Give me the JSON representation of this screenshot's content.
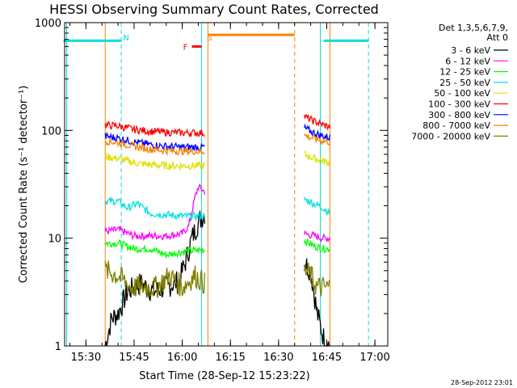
{
  "chart_data": {
    "type": "line",
    "title": "HESSI Observing Summary Count Rates, Corrected",
    "xlabel": "Start Time (28-Sep-12 15:23:22)",
    "ylabel": "Corrected Count Rate (s⁻¹ detector⁻¹)",
    "y_scale": "log",
    "ylim": [
      1,
      1000
    ],
    "xlim": [
      "15:23:22",
      "17:04:00"
    ],
    "x_ticks": [
      "15:30",
      "15:45",
      "16:00",
      "16:15",
      "16:30",
      "16:45",
      "17:00"
    ],
    "y_ticks": [
      "1",
      "10",
      "100",
      "1000"
    ],
    "timestamp": "28-Sep-2012 23:01",
    "legend_header": [
      "Det 1,3,5,6,7,9,",
      "Att 0"
    ],
    "legend_position": "top-right",
    "annotations": [
      {
        "label": "N",
        "color": "#00e0e0",
        "x": "15:41"
      },
      {
        "label": "S",
        "color": "#ff8000",
        "x": "16:07"
      },
      {
        "label": "F",
        "color": "#ff0000",
        "x": "16:03"
      }
    ],
    "markers": [
      {
        "name": "night",
        "color": "#00e0e0",
        "style": "solid",
        "x": "15:24"
      },
      {
        "name": "night",
        "color": "#00e0e0",
        "style": "dashed",
        "x": "15:41"
      },
      {
        "name": "night",
        "color": "#00e0e0",
        "style": "solid",
        "x": "16:06"
      },
      {
        "name": "night",
        "color": "#00e0e0",
        "style": "solid",
        "x": "16:43"
      },
      {
        "name": "night",
        "color": "#00e0e0",
        "style": "dashed",
        "x": "16:58"
      },
      {
        "name": "saa",
        "color": "#ff8000",
        "style": "solid",
        "x": "15:36"
      },
      {
        "name": "saa",
        "color": "#ff8000",
        "style": "solid",
        "x": "16:08"
      },
      {
        "name": "saa",
        "color": "#ff8000",
        "style": "dashed",
        "x": "16:35"
      },
      {
        "name": "saa",
        "color": "#ff8000",
        "style": "solid",
        "x": "16:46"
      }
    ],
    "bars": [
      {
        "name": "night",
        "color": "#00e0e0",
        "y": 680,
        "ranges": [
          [
            "15:23",
            "15:41"
          ],
          [
            "16:44",
            "16:58"
          ]
        ]
      },
      {
        "name": "saa",
        "color": "#ff8000",
        "y": 770,
        "ranges": [
          [
            "16:08",
            "16:35"
          ]
        ]
      },
      {
        "name": "flare",
        "color": "#ff0000",
        "y": 600,
        "ranges": [
          [
            "16:03",
            "16:06"
          ]
        ]
      }
    ],
    "series": [
      {
        "name": "3 - 6 keV",
        "color": "#000000",
        "segments": [
          [
            [
              "15:36",
              1.0
            ],
            [
              "15:38",
              1.8
            ],
            [
              "15:40",
              2.0
            ],
            [
              "15:43",
              3.2
            ],
            [
              "15:47",
              3.8
            ],
            [
              "15:51",
              3.2
            ],
            [
              "15:55",
              3.5
            ],
            [
              "15:59",
              4.0
            ],
            [
              "16:01",
              6.0
            ],
            [
              "16:03",
              10.0
            ],
            [
              "16:05",
              14.0
            ],
            [
              "16:07",
              17.0
            ]
          ],
          [
            [
              "16:38",
              6.0
            ],
            [
              "16:40",
              5.0
            ],
            [
              "16:42",
              2.0
            ],
            [
              "16:44",
              1.2
            ],
            [
              "16:46",
              1.0
            ]
          ]
        ]
      },
      {
        "name": "6 - 12 keV",
        "color": "#ff00ff",
        "segments": [
          [
            [
              "15:36",
              11.5
            ],
            [
              "15:40",
              12.0
            ],
            [
              "15:45",
              10.5
            ],
            [
              "15:50",
              10.5
            ],
            [
              "15:55",
              10.5
            ],
            [
              "16:00",
              11.0
            ],
            [
              "16:02",
              13.0
            ],
            [
              "16:04",
              24.0
            ],
            [
              "16:05",
              30.0
            ],
            [
              "16:07",
              27.0
            ]
          ],
          [
            [
              "16:38",
              11.0
            ],
            [
              "16:41",
              10.5
            ],
            [
              "16:44",
              10.0
            ],
            [
              "16:46",
              10.0
            ]
          ]
        ]
      },
      {
        "name": "12 - 25 keV",
        "color": "#00ff00",
        "segments": [
          [
            [
              "15:36",
              9.0
            ],
            [
              "15:40",
              9.0
            ],
            [
              "15:45",
              8.0
            ],
            [
              "15:50",
              8.0
            ],
            [
              "15:55",
              7.0
            ],
            [
              "16:00",
              7.5
            ],
            [
              "16:07",
              7.8
            ]
          ],
          [
            [
              "16:38",
              9.5
            ],
            [
              "16:41",
              8.5
            ],
            [
              "16:44",
              8.0
            ],
            [
              "16:46",
              8.0
            ]
          ]
        ]
      },
      {
        "name": "25 - 50 keV",
        "color": "#00e0e0",
        "segments": [
          [
            [
              "15:36",
              22.0
            ],
            [
              "15:40",
              22.0
            ],
            [
              "15:43",
              19.0
            ],
            [
              "15:46",
              21.0
            ],
            [
              "15:50",
              17.0
            ],
            [
              "15:55",
              16.5
            ],
            [
              "16:00",
              16.0
            ],
            [
              "16:07",
              16.0
            ]
          ],
          [
            [
              "16:38",
              23.0
            ],
            [
              "16:41",
              21.0
            ],
            [
              "16:44",
              19.0
            ],
            [
              "16:46",
              17.0
            ]
          ]
        ]
      },
      {
        "name": "50 - 100 keV",
        "color": "#e0e000",
        "segments": [
          [
            [
              "15:36",
              57.0
            ],
            [
              "15:40",
              55.0
            ],
            [
              "15:45",
              50.0
            ],
            [
              "15:50",
              48.0
            ],
            [
              "15:55",
              47.0
            ],
            [
              "16:00",
              47.0
            ],
            [
              "16:07",
              47.0
            ]
          ],
          [
            [
              "16:38",
              60.0
            ],
            [
              "16:41",
              55.0
            ],
            [
              "16:44",
              52.0
            ],
            [
              "16:46",
              50.0
            ]
          ]
        ]
      },
      {
        "name": "100 - 300 keV",
        "color": "#ff0000",
        "segments": [
          [
            [
              "15:36",
              112.0
            ],
            [
              "15:40",
              110.0
            ],
            [
              "15:45",
              102.0
            ],
            [
              "15:50",
              98.0
            ],
            [
              "15:55",
              96.0
            ],
            [
              "16:00",
              95.0
            ],
            [
              "16:07",
              95.0
            ]
          ],
          [
            [
              "16:38",
              135.0
            ],
            [
              "16:41",
              122.0
            ],
            [
              "16:44",
              112.0
            ],
            [
              "16:46",
              108.0
            ]
          ]
        ]
      },
      {
        "name": "300 - 800 keV",
        "color": "#0000ff",
        "segments": [
          [
            [
              "15:36",
              88.0
            ],
            [
              "15:40",
              85.0
            ],
            [
              "15:45",
              78.0
            ],
            [
              "15:50",
              74.0
            ],
            [
              "15:55",
              71.0
            ],
            [
              "16:00",
              70.0
            ],
            [
              "16:07",
              70.0
            ]
          ],
          [
            [
              "16:38",
              105.0
            ],
            [
              "16:41",
              95.0
            ],
            [
              "16:44",
              88.0
            ],
            [
              "16:46",
              86.0
            ]
          ]
        ]
      },
      {
        "name": "800 - 7000 keV",
        "color": "#ff8000",
        "segments": [
          [
            [
              "15:36",
              80.0
            ],
            [
              "15:40",
              77.0
            ],
            [
              "15:45",
              71.0
            ],
            [
              "15:50",
              67.0
            ],
            [
              "15:55",
              65.0
            ],
            [
              "16:00",
              64.0
            ],
            [
              "16:07",
              64.0
            ]
          ],
          [
            [
              "16:38",
              90.0
            ],
            [
              "16:41",
              84.0
            ],
            [
              "16:44",
              80.0
            ],
            [
              "16:46",
              78.0
            ]
          ]
        ]
      },
      {
        "name": "7000 - 20000 keV",
        "color": "#808000",
        "segments": [
          [
            [
              "15:36",
              5.0
            ],
            [
              "15:40",
              4.5
            ],
            [
              "15:44",
              3.5
            ],
            [
              "15:48",
              3.5
            ],
            [
              "15:52",
              3.5
            ],
            [
              "15:56",
              4.5
            ],
            [
              "16:00",
              3.5
            ],
            [
              "16:04",
              4.5
            ],
            [
              "16:07",
              3.8
            ]
          ],
          [
            [
              "16:38",
              5.0
            ],
            [
              "16:40",
              4.5
            ],
            [
              "16:42",
              3.5
            ],
            [
              "16:46",
              3.5
            ]
          ]
        ]
      }
    ]
  }
}
